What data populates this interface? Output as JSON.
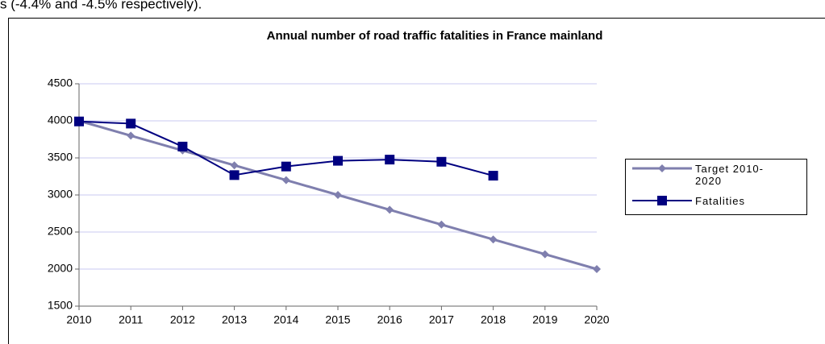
{
  "caption": "s (-4.4% and -4.5% respectively).",
  "chart_data": {
    "type": "line",
    "title": "Annual number of road traffic fatalities in France mainland",
    "categories": [
      "2010",
      "2011",
      "2012",
      "2013",
      "2014",
      "2015",
      "2016",
      "2017",
      "2018",
      "2019",
      "2020"
    ],
    "series": [
      {
        "name": "Target 2010-2020",
        "color": "#7f7fae",
        "marker": "diamond",
        "values": [
          4000,
          3800,
          3600,
          3400,
          3200,
          3000,
          2800,
          2600,
          2400,
          2200,
          2000
        ]
      },
      {
        "name": "Fatalities",
        "color": "#000080",
        "marker": "square",
        "values": [
          3992,
          3963,
          3653,
          3268,
          3384,
          3461,
          3477,
          3448,
          3260,
          null,
          null
        ]
      }
    ],
    "ylim": [
      1500,
      4500
    ],
    "yticks": [
      1500,
      2000,
      2500,
      3000,
      3500,
      4000,
      4500
    ],
    "grid": true,
    "legend": "right"
  }
}
